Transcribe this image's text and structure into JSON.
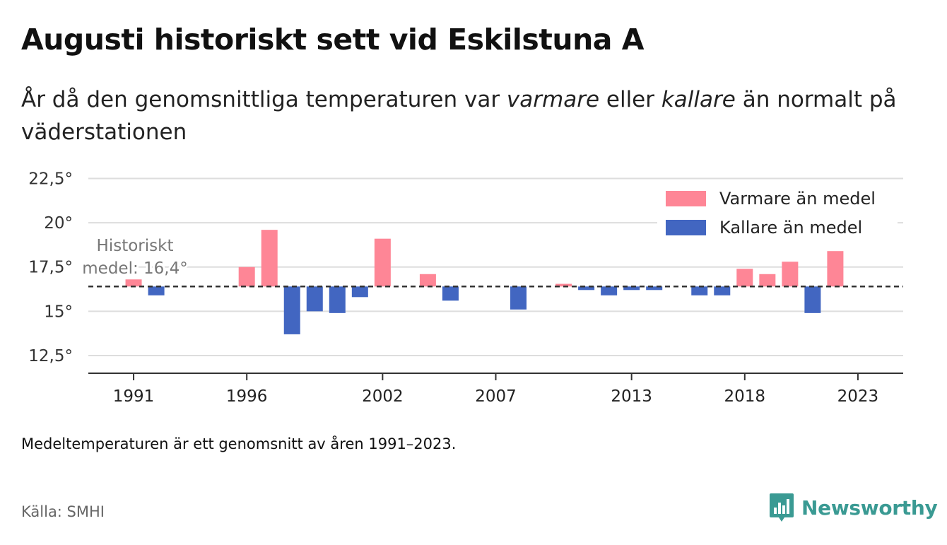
{
  "header": {
    "title": "Augusti historiskt sett vid Eskilstuna A",
    "subtitle_part1": "År då den genomsnittliga temperaturen var ",
    "subtitle_em1": "varmare",
    "subtitle_part2": " eller ",
    "subtitle_em2": "kallare",
    "subtitle_part3": " än normalt på väderstationen"
  },
  "footer": {
    "note": "Medeltemperaturen är ett genomsnitt av åren 1991–2023.",
    "source": "Källa: SMHI",
    "brand": "Newsworthy",
    "brand_icon": "bar-chart-speech-bubble-icon"
  },
  "colors": {
    "warmer": "#fe8696",
    "colder": "#4266c1",
    "brand": "#3a9a93",
    "grid": "#dddddd",
    "axis": "#333333"
  },
  "chart_data": {
    "type": "bar",
    "baseline": 16.4,
    "baseline_label_line1": "Historiskt",
    "baseline_label_line2": "medel: 16,4°",
    "ylim": [
      11.5,
      23
    ],
    "y_ticks": [
      12.5,
      15,
      17.5,
      20,
      22.5
    ],
    "y_tick_labels": [
      "12,5°",
      "15°",
      "17,5°",
      "20°",
      "22,5°"
    ],
    "x_ticks": [
      1991,
      1996,
      2002,
      2007,
      2013,
      2018,
      2023
    ],
    "x_tick_labels": [
      "1991",
      "1996",
      "2002",
      "2007",
      "2013",
      "2018",
      "2023"
    ],
    "xlim": [
      1989.0,
      2025.0
    ],
    "grid": true,
    "legend_position": "top-right",
    "legend": [
      {
        "label": "Varmare än medel",
        "key": "warmer"
      },
      {
        "label": "Kallare än medel",
        "key": "colder"
      }
    ],
    "series": [
      {
        "year": 1991,
        "value": 16.8
      },
      {
        "year": 1992,
        "value": 15.9
      },
      {
        "year": 1996,
        "value": 17.5
      },
      {
        "year": 1997,
        "value": 19.6
      },
      {
        "year": 1998,
        "value": 13.7
      },
      {
        "year": 1999,
        "value": 15.0
      },
      {
        "year": 2000,
        "value": 14.9
      },
      {
        "year": 2001,
        "value": 15.8
      },
      {
        "year": 2002,
        "value": 19.1
      },
      {
        "year": 2004,
        "value": 17.1
      },
      {
        "year": 2005,
        "value": 15.6
      },
      {
        "year": 2008,
        "value": 15.1
      },
      {
        "year": 2010,
        "value": 16.55
      },
      {
        "year": 2011,
        "value": 16.2
      },
      {
        "year": 2012,
        "value": 15.9
      },
      {
        "year": 2013,
        "value": 16.2
      },
      {
        "year": 2014,
        "value": 16.2
      },
      {
        "year": 2016,
        "value": 15.9
      },
      {
        "year": 2017,
        "value": 15.9
      },
      {
        "year": 2018,
        "value": 17.4
      },
      {
        "year": 2019,
        "value": 17.1
      },
      {
        "year": 2020,
        "value": 17.8
      },
      {
        "year": 2021,
        "value": 14.9
      },
      {
        "year": 2022,
        "value": 18.4
      }
    ]
  }
}
